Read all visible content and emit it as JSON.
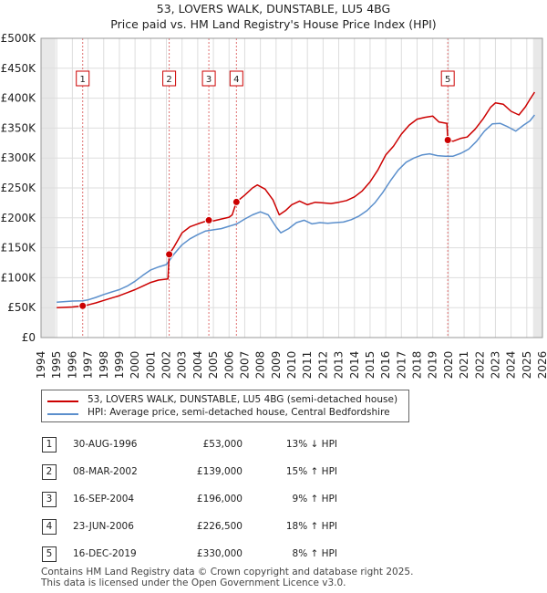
{
  "chart_data": {
    "type": "line",
    "title": "53, LOVERS WALK, DUNSTABLE, LU5 4BG",
    "subtitle": "Price paid vs. HM Land Registry's House Price Index (HPI)",
    "x_range": [
      1994,
      2026
    ],
    "ylim": [
      0,
      500000
    ],
    "grid": true,
    "y_ticks": [
      {
        "value": 0,
        "label": "£0"
      },
      {
        "value": 50000,
        "label": "£50K"
      },
      {
        "value": 100000,
        "label": "£100K"
      },
      {
        "value": 150000,
        "label": "£150K"
      },
      {
        "value": 200000,
        "label": "£200K"
      },
      {
        "value": 250000,
        "label": "£250K"
      },
      {
        "value": 300000,
        "label": "£300K"
      },
      {
        "value": 350000,
        "label": "£350K"
      },
      {
        "value": 400000,
        "label": "£400K"
      },
      {
        "value": 450000,
        "label": "£450K"
      },
      {
        "value": 500000,
        "label": "£500K"
      }
    ],
    "x_ticks": [
      "1994",
      "1995",
      "1996",
      "1997",
      "1998",
      "1999",
      "2000",
      "2001",
      "2002",
      "2003",
      "2004",
      "2005",
      "2006",
      "2007",
      "2008",
      "2009",
      "2010",
      "2011",
      "2012",
      "2013",
      "2014",
      "2015",
      "2016",
      "2017",
      "2018",
      "2019",
      "2020",
      "2021",
      "2022",
      "2023",
      "2024",
      "2025",
      "2026"
    ],
    "series": [
      {
        "name": "53, LOVERS WALK, DUNSTABLE, LU5 4BG (semi-detached house)",
        "color": "#cc0000",
        "points": [
          [
            1995.0,
            50000
          ],
          [
            1995.5,
            50500
          ],
          [
            1996.0,
            51000
          ],
          [
            1996.66,
            53000
          ],
          [
            1997.0,
            54500
          ],
          [
            1997.5,
            58000
          ],
          [
            1998.0,
            62000
          ],
          [
            1998.5,
            66000
          ],
          [
            1999.0,
            70000
          ],
          [
            1999.5,
            75000
          ],
          [
            2000.0,
            80000
          ],
          [
            2000.5,
            86000
          ],
          [
            2001.0,
            92000
          ],
          [
            2001.5,
            96000
          ],
          [
            2002.1,
            98000
          ],
          [
            2002.18,
            139000
          ],
          [
            2002.5,
            152000
          ],
          [
            2003.0,
            175000
          ],
          [
            2003.5,
            185000
          ],
          [
            2004.0,
            190000
          ],
          [
            2004.71,
            196000
          ],
          [
            2005.0,
            195000
          ],
          [
            2005.5,
            198000
          ],
          [
            2006.0,
            201000
          ],
          [
            2006.2,
            205000
          ],
          [
            2006.47,
            226500
          ],
          [
            2007.0,
            238000
          ],
          [
            2007.5,
            250000
          ],
          [
            2007.8,
            255000
          ],
          [
            2008.3,
            248000
          ],
          [
            2008.8,
            230000
          ],
          [
            2009.2,
            205000
          ],
          [
            2009.6,
            212000
          ],
          [
            2010.0,
            222000
          ],
          [
            2010.5,
            228000
          ],
          [
            2011.0,
            222000
          ],
          [
            2011.5,
            226000
          ],
          [
            2012.0,
            225000
          ],
          [
            2012.5,
            224000
          ],
          [
            2013.0,
            226000
          ],
          [
            2013.5,
            229000
          ],
          [
            2014.0,
            235000
          ],
          [
            2014.5,
            245000
          ],
          [
            2015.0,
            260000
          ],
          [
            2015.5,
            280000
          ],
          [
            2016.0,
            305000
          ],
          [
            2016.5,
            320000
          ],
          [
            2017.0,
            340000
          ],
          [
            2017.5,
            355000
          ],
          [
            2018.0,
            365000
          ],
          [
            2018.5,
            368000
          ],
          [
            2019.0,
            370000
          ],
          [
            2019.4,
            360000
          ],
          [
            2019.9,
            358000
          ],
          [
            2019.96,
            330000
          ],
          [
            2020.3,
            328000
          ],
          [
            2020.8,
            333000
          ],
          [
            2021.2,
            335000
          ],
          [
            2021.7,
            348000
          ],
          [
            2022.2,
            365000
          ],
          [
            2022.7,
            385000
          ],
          [
            2023.0,
            392000
          ],
          [
            2023.5,
            390000
          ],
          [
            2024.0,
            378000
          ],
          [
            2024.5,
            372000
          ],
          [
            2024.9,
            385000
          ],
          [
            2025.2,
            398000
          ],
          [
            2025.5,
            410000
          ]
        ]
      },
      {
        "name": "HPI: Average price, semi-detached house, Central Bedfordshire",
        "color": "#5b8fcc",
        "points": [
          [
            1995.0,
            59000
          ],
          [
            1995.5,
            60000
          ],
          [
            1996.0,
            61000
          ],
          [
            1996.66,
            61500
          ],
          [
            1997.0,
            63000
          ],
          [
            1997.5,
            67000
          ],
          [
            1998.0,
            72000
          ],
          [
            1998.5,
            76000
          ],
          [
            1999.0,
            80000
          ],
          [
            1999.5,
            86000
          ],
          [
            2000.0,
            94000
          ],
          [
            2000.5,
            104000
          ],
          [
            2001.0,
            113000
          ],
          [
            2001.5,
            118000
          ],
          [
            2002.0,
            122000
          ],
          [
            2002.5,
            140000
          ],
          [
            2003.0,
            155000
          ],
          [
            2003.5,
            165000
          ],
          [
            2004.0,
            172000
          ],
          [
            2004.5,
            178000
          ],
          [
            2005.0,
            180000
          ],
          [
            2005.5,
            182000
          ],
          [
            2006.0,
            186000
          ],
          [
            2006.5,
            190000
          ],
          [
            2007.0,
            198000
          ],
          [
            2007.5,
            205000
          ],
          [
            2008.0,
            210000
          ],
          [
            2008.5,
            205000
          ],
          [
            2009.0,
            185000
          ],
          [
            2009.3,
            175000
          ],
          [
            2009.8,
            182000
          ],
          [
            2010.3,
            192000
          ],
          [
            2010.8,
            196000
          ],
          [
            2011.3,
            190000
          ],
          [
            2011.8,
            192000
          ],
          [
            2012.3,
            191000
          ],
          [
            2012.8,
            192000
          ],
          [
            2013.3,
            193000
          ],
          [
            2013.8,
            197000
          ],
          [
            2014.3,
            203000
          ],
          [
            2014.8,
            212000
          ],
          [
            2015.3,
            225000
          ],
          [
            2015.8,
            242000
          ],
          [
            2016.3,
            262000
          ],
          [
            2016.8,
            280000
          ],
          [
            2017.3,
            293000
          ],
          [
            2017.8,
            300000
          ],
          [
            2018.3,
            305000
          ],
          [
            2018.8,
            307000
          ],
          [
            2019.3,
            304000
          ],
          [
            2019.8,
            303000
          ],
          [
            2020.3,
            303000
          ],
          [
            2020.8,
            308000
          ],
          [
            2021.3,
            315000
          ],
          [
            2021.8,
            328000
          ],
          [
            2022.3,
            345000
          ],
          [
            2022.8,
            357000
          ],
          [
            2023.3,
            358000
          ],
          [
            2023.8,
            352000
          ],
          [
            2024.3,
            345000
          ],
          [
            2024.8,
            355000
          ],
          [
            2025.2,
            362000
          ],
          [
            2025.5,
            372000
          ]
        ]
      }
    ],
    "sales": [
      {
        "id": "1",
        "x": 1996.66,
        "price": 53000
      },
      {
        "id": "2",
        "x": 2002.18,
        "price": 139000
      },
      {
        "id": "3",
        "x": 2004.71,
        "price": 196000
      },
      {
        "id": "4",
        "x": 2006.47,
        "price": 226500
      },
      {
        "id": "5",
        "x": 2019.96,
        "price": 330000
      }
    ],
    "shaded_ranges": [
      [
        1994,
        1994.92
      ],
      [
        2025.4,
        2026
      ]
    ]
  },
  "legend": {
    "property_label": "53, LOVERS WALK, DUNSTABLE, LU5 4BG (semi-detached house)",
    "hpi_label": "HPI: Average price, semi-detached house, Central Bedfordshire"
  },
  "transactions": [
    {
      "num": "1",
      "date": "30-AUG-1996",
      "price": "£53,000",
      "hpi": "13% ↓ HPI"
    },
    {
      "num": "2",
      "date": "08-MAR-2002",
      "price": "£139,000",
      "hpi": "15% ↑ HPI"
    },
    {
      "num": "3",
      "date": "16-SEP-2004",
      "price": "£196,000",
      "hpi": "9% ↑ HPI"
    },
    {
      "num": "4",
      "date": "23-JUN-2006",
      "price": "£226,500",
      "hpi": "18% ↑ HPI"
    },
    {
      "num": "5",
      "date": "16-DEC-2019",
      "price": "£330,000",
      "hpi": "8% ↑ HPI"
    }
  ],
  "footer": {
    "line1": "Contains HM Land Registry data © Crown copyright and database right 2025.",
    "line2": "This data is licensed under the Open Government Licence v3.0."
  }
}
